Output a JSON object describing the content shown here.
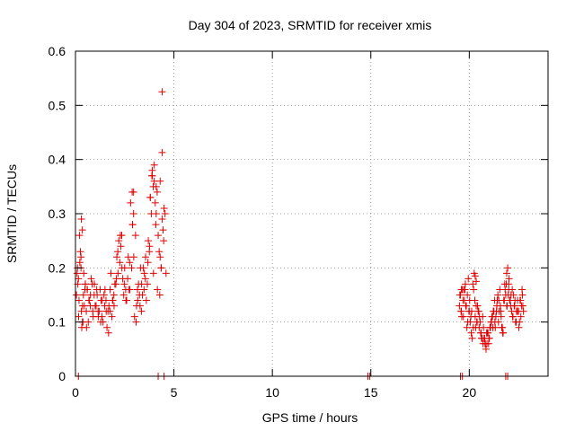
{
  "chart_data": {
    "type": "scatter",
    "title": "Day 304 of 2023, SRMTID for receiver xmis",
    "xlabel": "GPS time / hours",
    "ylabel": "SRMTID / TECUs",
    "xlim": [
      0,
      24
    ],
    "ylim": [
      0,
      0.6
    ],
    "xticks": [
      0,
      5,
      10,
      15,
      20
    ],
    "xtick_labels": [
      "0",
      "5",
      "10",
      "15",
      "20"
    ],
    "yticks": [
      0,
      0.1,
      0.2,
      0.3,
      0.4,
      0.5,
      0.6
    ],
    "ytick_labels": [
      "0",
      "0.1",
      "0.2",
      "0.3",
      "0.4",
      "0.5",
      "0.6"
    ],
    "grid": true,
    "marker": "+",
    "series": [
      {
        "name": "SRMTID",
        "color": "#e00000",
        "x": [
          0.05,
          0.1,
          0.15,
          0.2,
          0.25,
          0.3,
          0.35,
          0.4,
          0.45,
          0.5,
          0.55,
          0.6,
          0.65,
          0.7,
          0.8,
          0.9,
          1.0,
          1.1,
          1.2,
          1.3,
          1.4,
          1.5,
          1.6,
          1.7,
          1.8,
          1.9,
          2.0,
          2.1,
          2.2,
          2.3,
          2.4,
          2.5,
          2.6,
          2.7,
          2.8,
          2.9,
          3.0,
          3.1,
          3.2,
          3.3,
          3.4,
          3.5,
          3.6,
          3.7,
          3.8,
          3.9,
          4.0,
          4.1,
          4.2,
          4.3,
          4.4,
          4.5,
          4.6,
          0.12,
          0.22,
          0.32,
          0.42,
          0.6,
          0.75,
          0.95,
          1.15,
          1.35,
          1.55,
          1.75,
          1.95,
          2.15,
          2.35,
          2.55,
          2.75,
          2.95,
          3.15,
          3.35,
          3.55,
          3.75,
          3.95,
          4.15,
          4.35,
          4.55,
          0.18,
          0.28,
          0.38,
          0.5,
          0.7,
          0.85,
          1.05,
          1.25,
          1.45,
          1.65,
          1.85,
          2.05,
          2.25,
          2.45,
          2.65,
          2.85,
          3.05,
          3.25,
          3.45,
          3.65,
          3.85,
          4.05,
          4.25,
          4.45,
          0.08,
          0.28,
          0.48,
          0.68,
          0.88,
          1.08,
          1.28,
          1.48,
          1.68,
          1.88,
          2.08,
          2.28,
          2.48,
          2.68,
          2.88,
          3.08,
          3.28,
          3.48,
          3.68,
          3.88,
          4.08,
          4.28,
          4.48,
          0.16,
          0.36,
          0.56,
          0.76,
          0.96,
          1.16,
          1.36,
          1.56,
          1.76,
          1.96,
          2.16,
          2.36,
          2.56,
          2.76,
          2.96,
          3.16,
          3.36,
          3.56,
          3.76,
          3.96,
          4.16,
          4.36,
          4.4,
          4.4,
          4.3,
          4.1,
          4.0,
          3.9,
          3.8,
          2.9,
          2.95,
          0.3,
          0.35,
          19.5,
          19.55,
          19.6,
          19.65,
          19.7,
          19.75,
          19.8,
          19.85,
          19.9,
          19.95,
          20.0,
          20.05,
          20.1,
          20.15,
          20.2,
          20.25,
          20.3,
          20.35,
          20.4,
          20.45,
          20.5,
          20.55,
          20.6,
          20.65,
          20.7,
          20.75,
          20.8,
          20.85,
          20.9,
          20.95,
          21.0,
          21.05,
          21.1,
          21.15,
          21.2,
          21.25,
          21.3,
          21.35,
          21.4,
          21.45,
          21.5,
          21.55,
          21.6,
          21.65,
          21.7,
          21.75,
          21.8,
          21.85,
          21.9,
          21.95,
          22.0,
          22.05,
          22.1,
          22.15,
          22.2,
          22.25,
          22.3,
          22.35,
          22.4,
          22.45,
          22.5,
          22.55,
          22.6,
          22.65,
          22.7,
          22.75,
          19.52,
          19.62,
          19.72,
          19.82,
          19.92,
          20.02,
          20.12,
          20.22,
          20.32,
          20.42,
          20.52,
          20.62,
          20.72,
          20.82,
          20.92,
          21.02,
          21.12,
          21.22,
          21.32,
          21.42,
          21.52,
          21.62,
          21.72,
          21.82,
          21.92,
          22.02,
          22.12,
          22.22,
          22.32,
          22.42,
          22.52,
          22.62,
          22.72,
          19.58,
          19.68,
          19.78,
          19.88,
          19.98,
          20.08,
          20.18,
          20.28,
          20.38,
          20.48,
          20.58,
          20.68,
          20.78,
          20.88,
          20.98,
          21.08,
          21.18,
          21.28,
          21.38,
          21.48,
          21.58,
          21.68,
          21.78,
          21.88,
          21.98,
          22.08,
          22.18,
          22.28,
          22.38,
          22.48,
          22.58,
          22.68,
          20.3,
          20.35,
          21.9,
          22.0,
          19.6,
          0.15,
          4.2,
          4.5,
          14.85,
          14.95,
          19.55,
          19.65,
          21.85,
          21.95
        ],
        "y": [
          0.15,
          0.2,
          0.18,
          0.26,
          0.23,
          0.12,
          0.1,
          0.15,
          0.13,
          0.17,
          0.12,
          0.16,
          0.1,
          0.14,
          0.18,
          0.11,
          0.13,
          0.15,
          0.12,
          0.14,
          0.1,
          0.16,
          0.09,
          0.13,
          0.19,
          0.14,
          0.17,
          0.22,
          0.25,
          0.24,
          0.18,
          0.2,
          0.14,
          0.16,
          0.32,
          0.28,
          0.11,
          0.13,
          0.17,
          0.2,
          0.15,
          0.19,
          0.14,
          0.25,
          0.33,
          0.38,
          0.36,
          0.3,
          0.26,
          0.22,
          0.29,
          0.31,
          0.19,
          0.17,
          0.21,
          0.09,
          0.19,
          0.16,
          0.13,
          0.15,
          0.12,
          0.11,
          0.14,
          0.12,
          0.15,
          0.23,
          0.26,
          0.16,
          0.21,
          0.3,
          0.16,
          0.12,
          0.18,
          0.23,
          0.35,
          0.34,
          0.2,
          0.3,
          0.14,
          0.2,
          0.1,
          0.17,
          0.14,
          0.17,
          0.13,
          0.16,
          0.15,
          0.12,
          0.11,
          0.17,
          0.21,
          0.15,
          0.18,
          0.2,
          0.26,
          0.15,
          0.2,
          0.17,
          0.3,
          0.32,
          0.23,
          0.27,
          0.19,
          0.22,
          0.16,
          0.14,
          0.12,
          0.16,
          0.1,
          0.13,
          0.08,
          0.14,
          0.18,
          0.26,
          0.17,
          0.22,
          0.34,
          0.1,
          0.13,
          0.16,
          0.21,
          0.37,
          0.28,
          0.15,
          0.25,
          0.11,
          0.13,
          0.09,
          0.15,
          0.17,
          0.11,
          0.14,
          0.12,
          0.16,
          0.13,
          0.19,
          0.2,
          0.14,
          0.16,
          0.22,
          0.14,
          0.17,
          0.22,
          0.24,
          0.19,
          0.16,
          0.2,
          0.525,
          0.413,
          0.36,
          0.35,
          0.39,
          0.37,
          0.33,
          0.28,
          0.34,
          0.29,
          0.27,
          0.13,
          0.15,
          0.12,
          0.16,
          0.11,
          0.14,
          0.17,
          0.13,
          0.15,
          0.18,
          0.12,
          0.1,
          0.08,
          0.07,
          0.09,
          0.19,
          0.11,
          0.13,
          0.1,
          0.12,
          0.09,
          0.1,
          0.08,
          0.07,
          0.06,
          0.07,
          0.06,
          0.05,
          0.06,
          0.08,
          0.07,
          0.09,
          0.1,
          0.11,
          0.09,
          0.12,
          0.1,
          0.11,
          0.13,
          0.15,
          0.14,
          0.16,
          0.12,
          0.09,
          0.08,
          0.14,
          0.17,
          0.15,
          0.13,
          0.2,
          0.16,
          0.14,
          0.13,
          0.12,
          0.11,
          0.15,
          0.13,
          0.1,
          0.12,
          0.14,
          0.12,
          0.1,
          0.14,
          0.13,
          0.15,
          0.12,
          0.15,
          0.11,
          0.16,
          0.13,
          0.1,
          0.14,
          0.12,
          0.16,
          0.09,
          0.13,
          0.11,
          0.07,
          0.09,
          0.06,
          0.08,
          0.07,
          0.1,
          0.12,
          0.09,
          0.14,
          0.12,
          0.11,
          0.08,
          0.16,
          0.13,
          0.18,
          0.15,
          0.11,
          0.14,
          0.12,
          0.09,
          0.11,
          0.13,
          0.12,
          0.14,
          0.16,
          0.09,
          0.12,
          0.11,
          0.17,
          0.14,
          0.1,
          0.12,
          0.08,
          0.11,
          0.07,
          0.08,
          0.06,
          0.09,
          0.11,
          0.14,
          0.12,
          0.1,
          0.13,
          0.09,
          0.14,
          0.17,
          0.15,
          0.14,
          0.16,
          0.13,
          0.1,
          0.12,
          0.14,
          0.16,
          0.185,
          0.175,
          0.19,
          0.17,
          0.16,
          0.0,
          0.0,
          0.0,
          0.0,
          0.0,
          0.0,
          0.0,
          0.0,
          0.0
        ]
      }
    ]
  }
}
